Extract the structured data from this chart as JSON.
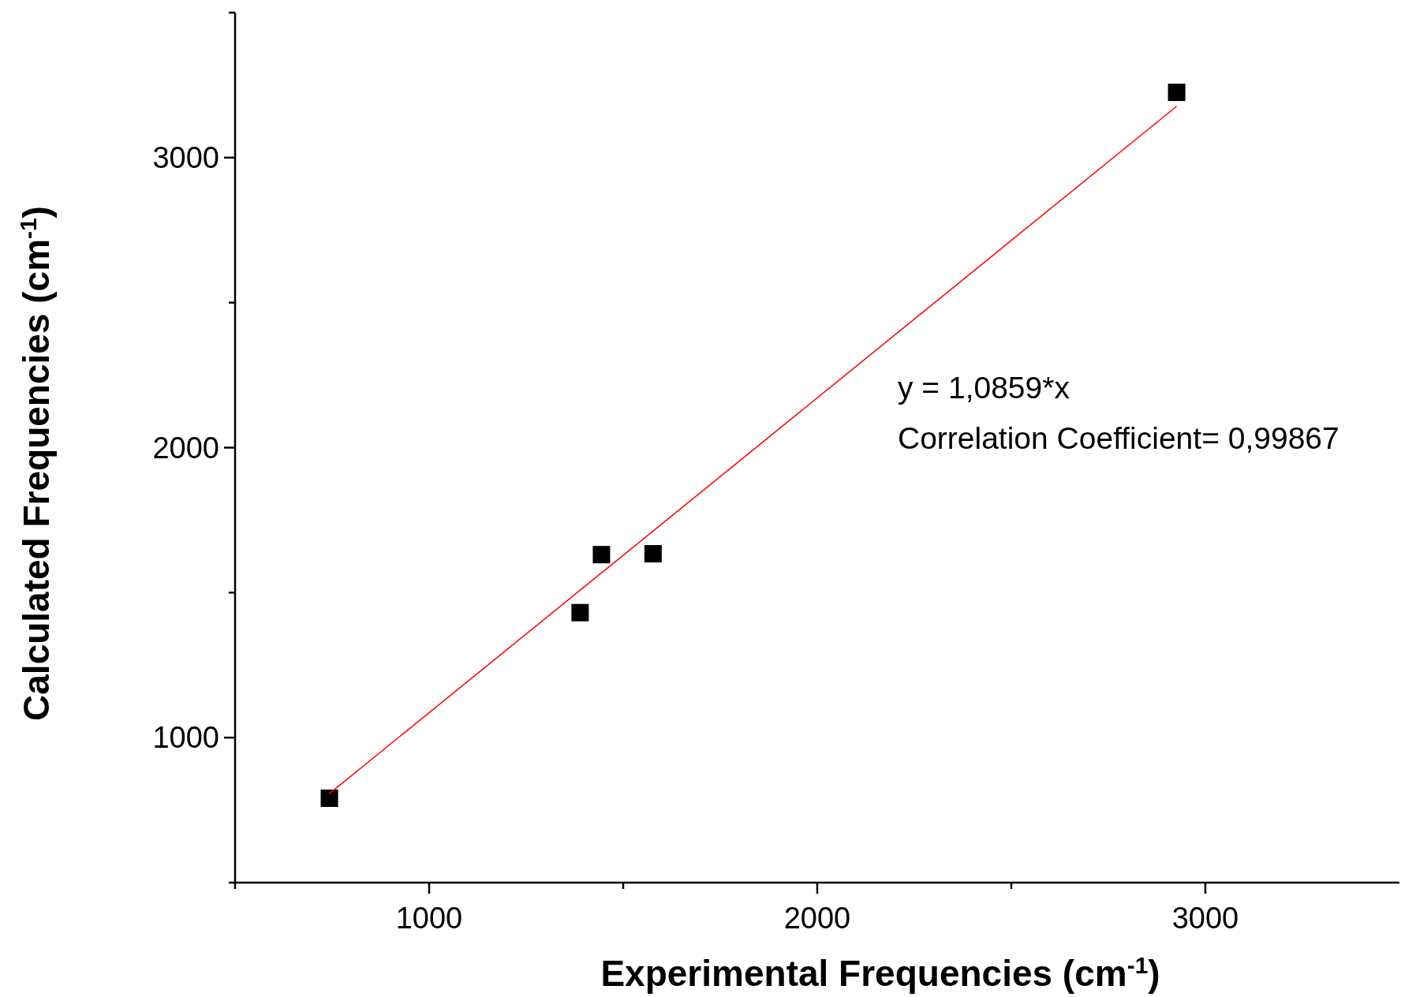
{
  "chart_data": {
    "type": "scatter",
    "xlabel": "Experimental Frequencies (cm$^{-1}$)",
    "ylabel": "Calculated Frequencies (cm$^{-1}$)",
    "xlim": [
      500,
      3500
    ],
    "ylim": [
      500,
      3500
    ],
    "xticks": [
      {
        "value": 500,
        "label": null
      },
      1000,
      {
        "value": 1500,
        "label": null
      },
      2000,
      {
        "value": 2500,
        "label": null
      },
      3000
    ],
    "yticks": [
      {
        "value": 500,
        "label": null
      },
      1000,
      {
        "value": 1500,
        "label": null
      },
      2000,
      {
        "value": 2500,
        "label": null
      },
      3000,
      {
        "value": 3500,
        "label": null
      }
    ],
    "series": [
      {
        "color": "#000000",
        "marker": "square",
        "x": [
          743,
          1389,
          1444,
          1577,
          2926
        ],
        "values": [
          791,
          1431,
          1631,
          1634,
          3225
        ]
      },
      {
        "type": "line",
        "color": "#ff0000",
        "marker": "none",
        "x": [
          743,
          2926
        ],
        "values": [
          807,
          3177
        ]
      }
    ],
    "annotations": [
      "y = 1,0859*x",
      "Correlation Coefficient= 0,99867"
    ],
    "grid": false
  }
}
